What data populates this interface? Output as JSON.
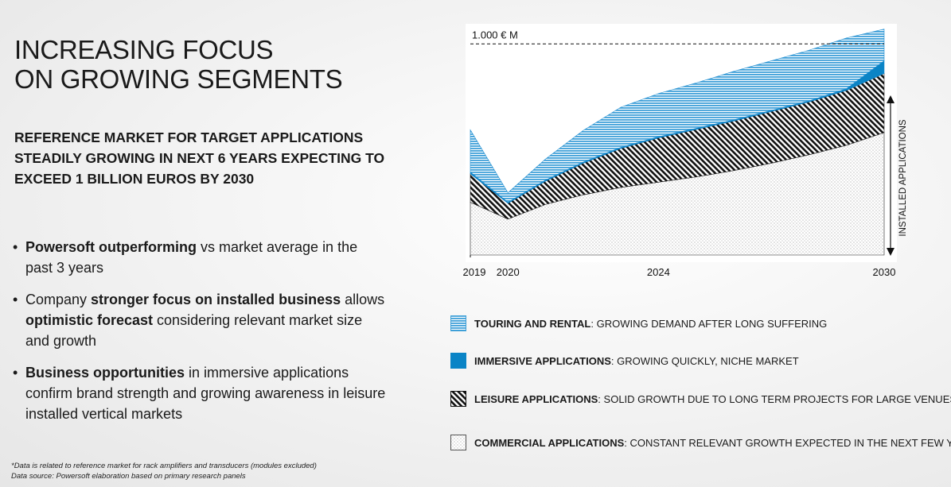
{
  "page": {
    "title_line1": "INCREASING FOCUS",
    "title_line2": "ON GROWING SEGMENTS",
    "subtitle": "REFERENCE MARKET FOR TARGET APPLICATIONS STEADILY GROWING IN NEXT 6 YEARS EXPECTING TO EXCEED 1 BILLION EUROS BY 2030",
    "bullets": [
      {
        "bold1": "Powersoft outperforming",
        "text1": " vs market average in the past 3 years",
        "bold2": "",
        "text2": ""
      },
      {
        "bold1": "",
        "text1": "Company ",
        "bold2": "stronger focus on installed business",
        "text2": " allows ",
        "bold3": "optimistic forecast",
        "text3": " considering relevant market size and growth"
      },
      {
        "bold1": "Business opportunities",
        "text1": " in immersive applications confirm brand strength and growing awareness in leisure installed vertical markets"
      }
    ],
    "footnote1": "*Data is related to reference market for rack amplifiers and transducers (modules excluded)",
    "footnote2": "Data source: Powersoft elaboration based on primary research panels"
  },
  "chart_data": {
    "type": "area",
    "stacked": true,
    "x": [
      2019,
      2020,
      2021,
      2022,
      2023,
      2024,
      2025,
      2026,
      2027,
      2028,
      2029,
      2030
    ],
    "y_max": 1050,
    "reference_line": {
      "value": 1000,
      "label": "1.000 € M"
    },
    "x_tick_labels": [
      "2019",
      "2020",
      "2024",
      "2030"
    ],
    "x_tick_values": [
      2019,
      2020,
      2024,
      2030
    ],
    "right_axis_label": "INSTALLED APPLICATIONS",
    "series": [
      {
        "name": "COMMERCIAL APPLICATIONS",
        "description": "CONSTANT RELEVANT GROWTH EXPECTED IN THE NEXT FEW YEARS",
        "pattern": "dots",
        "values": [
          250,
          170,
          240,
          285,
          320,
          345,
          370,
          400,
          435,
          475,
          520,
          580
        ]
      },
      {
        "name": "LEISURE APPLICATIONS",
        "description": "SOLID GROWTH DUE TO LONG TERM PROJECTS FOR LARGE VENUES",
        "pattern": "diagonal",
        "values": [
          135,
          75,
          110,
          150,
          185,
          210,
          225,
          235,
          245,
          250,
          260,
          280
        ]
      },
      {
        "name": "IMMERSIVE APPLICATIONS",
        "description": "GROWING QUICKLY, NICHE MARKET",
        "pattern": "solid",
        "color": "#0a84c6",
        "values": [
          8,
          5,
          5,
          5,
          5,
          5,
          5,
          5,
          5,
          5,
          8,
          60
        ]
      },
      {
        "name": "TOURING AND RENTAL",
        "description": "GROWING DEMAND AFTER LONG SUFFERING",
        "pattern": "stripes",
        "color": "#3fa0d8",
        "values": [
          200,
          45,
          100,
          150,
          190,
          205,
          215,
          230,
          235,
          240,
          240,
          150
        ]
      }
    ]
  }
}
